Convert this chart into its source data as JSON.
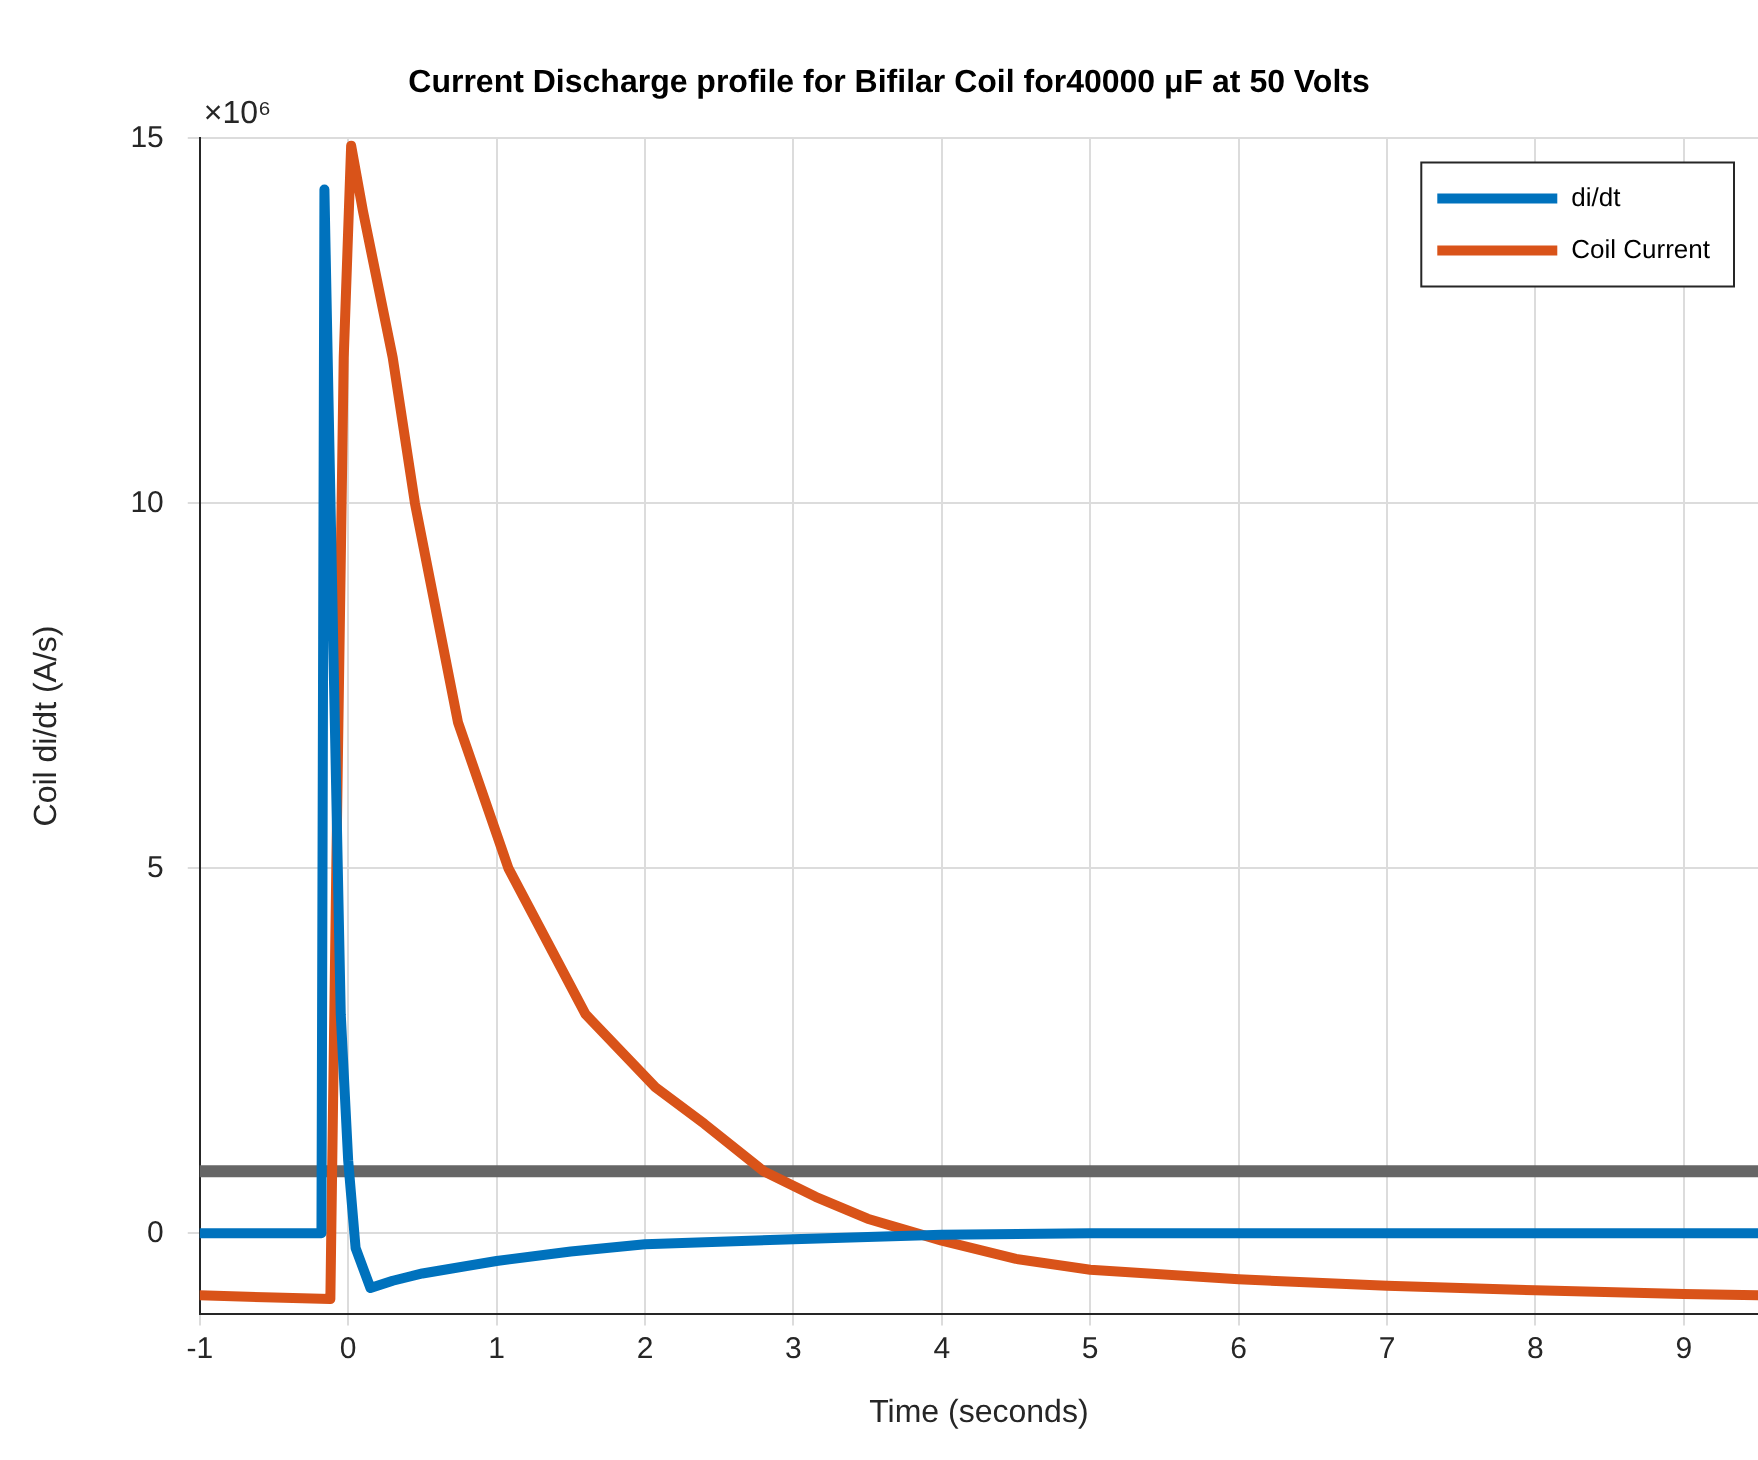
{
  "chart_data": {
    "type": "line",
    "title": "Current Discharge profile for Bifilar Coil for40000 μF at 50 Volts",
    "xlabel": "Time (seconds)",
    "ylabel": "Coil di/dt (A/s)",
    "annotations": [
      "×10⁶"
    ],
    "xlim": [
      -1,
      9.5
    ],
    "xticks": [
      -1,
      0,
      1,
      2,
      3,
      4,
      5,
      6,
      7,
      8,
      9
    ],
    "ylim": [
      -1.1,
      15
    ],
    "yticks": [
      0,
      5,
      10,
      15
    ],
    "grid": true,
    "legend": "top right",
    "marker": "none",
    "line_style": "solid",
    "ref_lines": [
      {
        "axis": "y",
        "value": 0.85,
        "label": null,
        "color": "#666666"
      }
    ],
    "series": [
      {
        "name": "di/dt",
        "color": "#0072bd",
        "x": [
          -1,
          -0.5,
          -0.18,
          -0.16,
          -0.1,
          -0.05,
          0,
          0.05,
          0.15,
          0.3,
          0.5,
          1,
          1.5,
          2,
          3,
          4,
          5,
          6,
          7,
          8,
          9,
          9.5
        ],
        "values": [
          0,
          0,
          0,
          14.3,
          8,
          3,
          1,
          -0.2,
          -0.75,
          -0.65,
          -0.55,
          -0.38,
          -0.25,
          -0.15,
          -0.08,
          -0.02,
          0,
          0,
          0,
          0,
          0,
          0
        ]
      },
      {
        "name": "Coil Current",
        "color": "#d95319",
        "x": [
          -1,
          -0.5,
          -0.12,
          -0.08,
          -0.03,
          0.02,
          0.1,
          0.3,
          0.45,
          0.74,
          1.08,
          1.6,
          2.07,
          2.4,
          2.8,
          3.15,
          3.5,
          4,
          4.5,
          5,
          6,
          7,
          8,
          9,
          9.5
        ],
        "values": [
          -0.85,
          -0.88,
          -0.9,
          5,
          12,
          14.9,
          14,
          12,
          10,
          7,
          5,
          3,
          2,
          1.5,
          0.85,
          0.5,
          0.2,
          -0.1,
          -0.35,
          -0.5,
          -0.63,
          -0.72,
          -0.78,
          -0.83,
          -0.85
        ]
      }
    ]
  }
}
